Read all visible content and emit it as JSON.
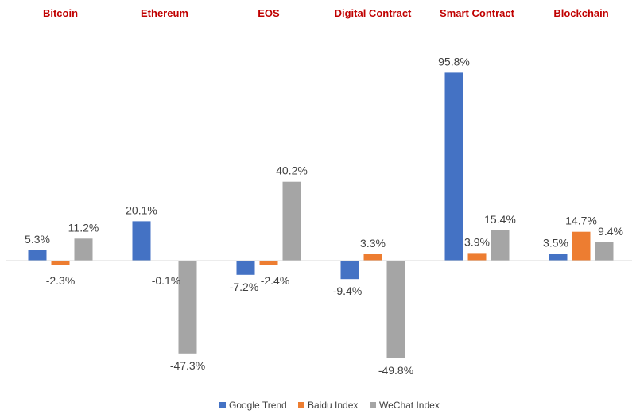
{
  "chart_data": {
    "type": "bar",
    "title": "",
    "xlabel": "",
    "ylabel": "",
    "ylim": [
      -60,
      100
    ],
    "grid": false,
    "legend_position": "bottom",
    "categories": [
      "Bitcoin",
      "Ethereum",
      "EOS",
      "Digital Contract",
      "Smart Contract",
      "Blockchain"
    ],
    "series": [
      {
        "name": "Google Trend",
        "color": "#4472c4",
        "values": [
          5.3,
          20.1,
          -7.2,
          -9.4,
          95.8,
          3.5
        ],
        "labels": [
          "5.3%",
          "20.1%",
          "-7.2%",
          "-9.4%",
          "95.8%",
          "3.5%"
        ]
      },
      {
        "name": "Baidu Index",
        "color": "#ed7d31",
        "values": [
          -2.3,
          -0.1,
          -2.4,
          3.3,
          3.9,
          14.7
        ],
        "labels": [
          "-2.3%",
          "-0.1%",
          "-2.4%",
          "3.3%",
          "3.9%",
          "14.7%"
        ]
      },
      {
        "name": "WeChat Index",
        "color": "#a5a5a5",
        "values": [
          11.2,
          -47.3,
          40.2,
          -49.8,
          15.4,
          9.4
        ],
        "labels": [
          "11.2%",
          "-47.3%",
          "40.2%",
          "-49.8%",
          "15.4%",
          "9.4%"
        ]
      }
    ]
  }
}
